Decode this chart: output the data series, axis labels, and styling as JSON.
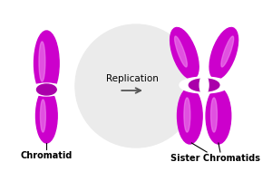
{
  "bg_color": "#ffffff",
  "chrom_fill": "#cc00cc",
  "chrom_dark": "#aa00aa",
  "chrom_light": "#e040e0",
  "chrom_highlight": "#ee88ee",
  "arrow_color": "#555555",
  "text_color": "#000000",
  "replication_text": "Replication",
  "label_left": "Chromatid",
  "label_right": "Sister Chromatids",
  "watermark_color": "#ebebeb",
  "label_fontsize": 7.0,
  "arrow_fontsize": 7.5,
  "fig_w": 3.0,
  "fig_h": 2.0,
  "dpi": 100
}
